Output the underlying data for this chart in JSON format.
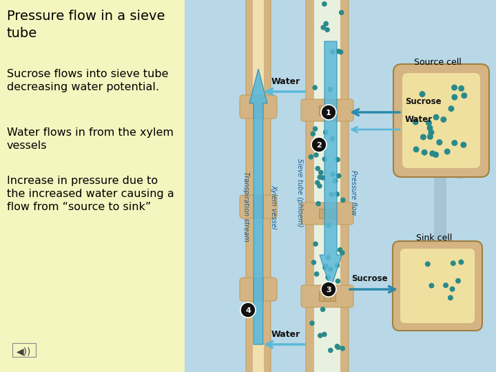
{
  "bg_left_color": "#f5f5c0",
  "bg_right_color": "#b8d8e8",
  "title": "Pressure flow in a sieve\ntube",
  "bullet1": "Sucrose flows into sieve tube\ndecreasing water potential.",
  "bullet2": "Water flows in from the xylem\nvessels",
  "bullet3": "Increase in pressure due to\nthe increased water causing a\nflow from “source to sink”",
  "title_fontsize": 14,
  "text_fontsize": 11.5,
  "text_color": "#000000",
  "source_cell_label": "Source cell",
  "sink_cell_label": "Sink cell",
  "water_label": "Water",
  "sucrose_label": "Sucrose",
  "transpiration_label": "Transpiration stream",
  "xylem_label": "Xylem vessel",
  "sieve_label": "Sieve tube (phloem)",
  "pressure_label": "Pressure flow",
  "tube_color": "#d4b483",
  "tube_inner_color": "#f0e0b0",
  "cell_fill_color": "#f0e0a0",
  "dot_color": "#2a8a8a",
  "arrow_blue": "#5ab8d8",
  "arrow_dark": "#2a8aaa",
  "circle_fill": "#111111",
  "plant_color": "#9ab8c8"
}
